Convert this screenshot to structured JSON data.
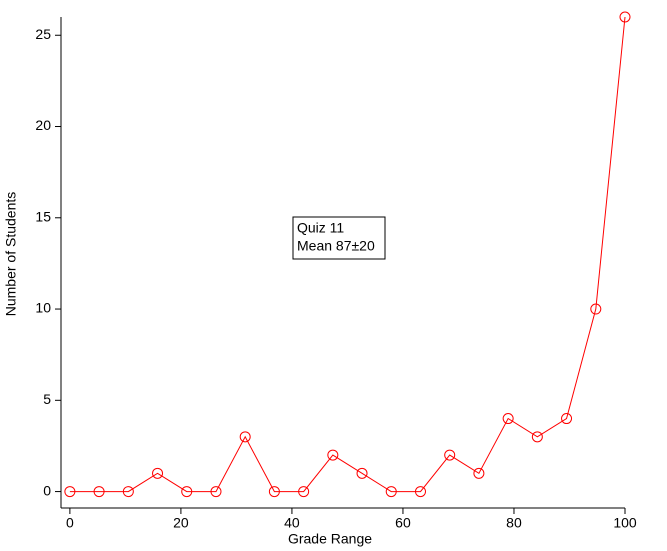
{
  "chart_data": {
    "type": "line",
    "xlabel": "Grade Range",
    "ylabel": "Number of Students",
    "annotation": [
      "Quiz 11",
      "Mean 87±20"
    ],
    "x": [
      0,
      5.26,
      10.53,
      15.79,
      21.05,
      26.32,
      31.58,
      36.84,
      42.11,
      47.37,
      52.63,
      57.89,
      63.16,
      68.42,
      73.68,
      78.95,
      84.21,
      89.47,
      94.74,
      100
    ],
    "series": [
      {
        "color": "#ff0000",
        "values": [
          0,
          0,
          0,
          1,
          0,
          0,
          3,
          0,
          0,
          2,
          1,
          0,
          0,
          2,
          1,
          4,
          3,
          4,
          10,
          26
        ]
      }
    ],
    "xlim": [
      -1.6,
      100
    ],
    "xticks": [
      0,
      20,
      40,
      60,
      80,
      100
    ],
    "ylim": [
      -0.9,
      26
    ],
    "yticks": [
      0,
      5,
      10,
      15,
      20,
      25
    ]
  }
}
